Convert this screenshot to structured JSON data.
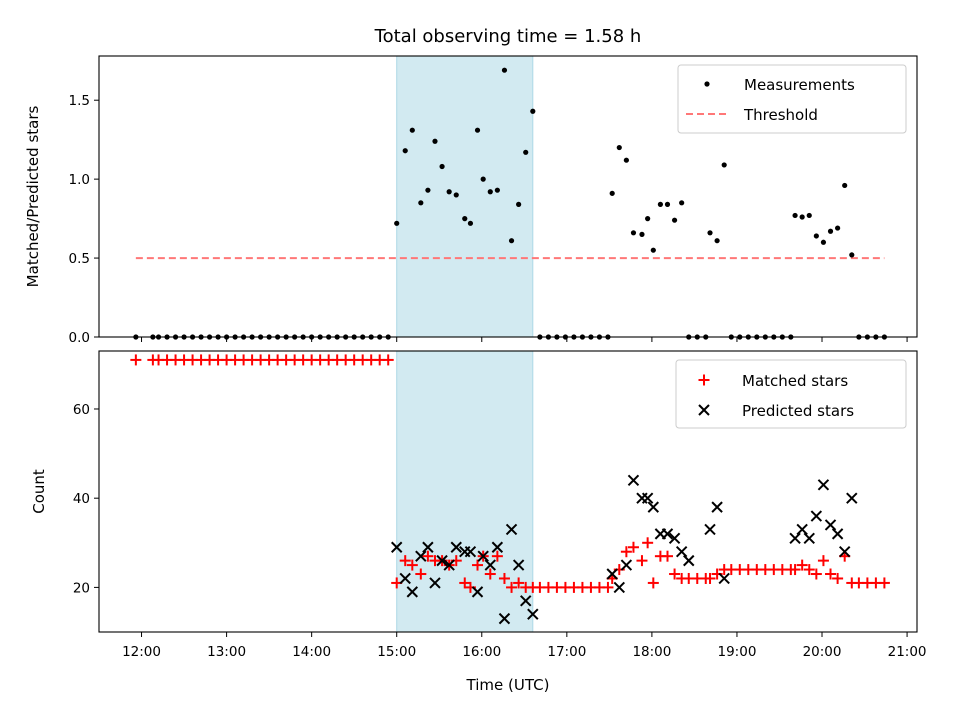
{
  "title": "Total observing time = 1.58 h",
  "highlight_window": {
    "start": "15:00",
    "end": "16:36",
    "color": "#add8e6"
  },
  "colors": {
    "measurements": "#000000",
    "threshold": "#ff7777",
    "matched": "#ff0000",
    "predicted": "#000000"
  },
  "chart_data": [
    {
      "type": "scatter",
      "ylabel": "Matched/Predicted stars",
      "ylim": [
        0,
        1.78
      ],
      "yticks": [
        "0.0",
        "0.5",
        "1.0",
        "1.5"
      ],
      "legend_position": "top-right",
      "series": [
        {
          "name": "Measurements",
          "marker": "dot",
          "points": [
            [
              "11:56",
              0
            ],
            [
              "12:08",
              0
            ],
            [
              "12:12",
              0
            ],
            [
              "12:18",
              0
            ],
            [
              "12:24",
              0
            ],
            [
              "12:30",
              0
            ],
            [
              "12:36",
              0
            ],
            [
              "12:42",
              0
            ],
            [
              "12:48",
              0
            ],
            [
              "12:54",
              0
            ],
            [
              "13:00",
              0
            ],
            [
              "13:06",
              0
            ],
            [
              "13:12",
              0
            ],
            [
              "13:18",
              0
            ],
            [
              "13:24",
              0
            ],
            [
              "13:30",
              0
            ],
            [
              "13:36",
              0
            ],
            [
              "13:42",
              0
            ],
            [
              "13:48",
              0
            ],
            [
              "13:54",
              0
            ],
            [
              "14:00",
              0
            ],
            [
              "14:06",
              0
            ],
            [
              "14:12",
              0
            ],
            [
              "14:18",
              0
            ],
            [
              "14:24",
              0
            ],
            [
              "14:30",
              0
            ],
            [
              "14:36",
              0
            ],
            [
              "14:42",
              0
            ],
            [
              "14:48",
              0
            ],
            [
              "14:54",
              0
            ],
            [
              "15:00",
              0.72
            ],
            [
              "15:06",
              1.18
            ],
            [
              "15:11",
              1.31
            ],
            [
              "15:17",
              0.85
            ],
            [
              "15:22",
              0.93
            ],
            [
              "15:27",
              1.24
            ],
            [
              "15:32",
              1.08
            ],
            [
              "15:37",
              0.92
            ],
            [
              "15:42",
              0.9
            ],
            [
              "15:48",
              0.75
            ],
            [
              "15:52",
              0.72
            ],
            [
              "15:57",
              1.31
            ],
            [
              "16:01",
              1.0
            ],
            [
              "16:06",
              0.92
            ],
            [
              "16:11",
              0.93
            ],
            [
              "16:16",
              1.69
            ],
            [
              "16:21",
              0.61
            ],
            [
              "16:26",
              0.84
            ],
            [
              "16:31",
              1.17
            ],
            [
              "16:36",
              1.43
            ],
            [
              "16:41",
              0
            ],
            [
              "16:47",
              0
            ],
            [
              "16:53",
              0
            ],
            [
              "16:59",
              0
            ],
            [
              "17:05",
              0
            ],
            [
              "17:11",
              0
            ],
            [
              "17:17",
              0
            ],
            [
              "17:23",
              0
            ],
            [
              "17:29",
              0
            ],
            [
              "17:32",
              0.91
            ],
            [
              "17:37",
              1.2
            ],
            [
              "17:42",
              1.12
            ],
            [
              "17:47",
              0.66
            ],
            [
              "17:53",
              0.65
            ],
            [
              "17:57",
              0.75
            ],
            [
              "18:01",
              0.55
            ],
            [
              "18:06",
              0.84
            ],
            [
              "18:11",
              0.84
            ],
            [
              "18:16",
              0.74
            ],
            [
              "18:21",
              0.85
            ],
            [
              "18:26",
              0
            ],
            [
              "18:32",
              0
            ],
            [
              "18:38",
              0
            ],
            [
              "18:41",
              0.66
            ],
            [
              "18:46",
              0.61
            ],
            [
              "18:51",
              1.09
            ],
            [
              "18:56",
              0
            ],
            [
              "19:02",
              0
            ],
            [
              "19:08",
              0
            ],
            [
              "19:14",
              0
            ],
            [
              "19:20",
              0
            ],
            [
              "19:26",
              0
            ],
            [
              "19:32",
              0
            ],
            [
              "19:38",
              0
            ],
            [
              "19:41",
              0.77
            ],
            [
              "19:46",
              0.76
            ],
            [
              "19:51",
              0.77
            ],
            [
              "19:56",
              0.64
            ],
            [
              "20:01",
              0.6
            ],
            [
              "20:06",
              0.67
            ],
            [
              "20:11",
              0.69
            ],
            [
              "20:16",
              0.96
            ],
            [
              "20:21",
              0.52
            ],
            [
              "20:26",
              0
            ],
            [
              "20:32",
              0
            ],
            [
              "20:38",
              0
            ],
            [
              "20:44",
              0
            ]
          ]
        },
        {
          "name": "Threshold",
          "style": "dashed-line",
          "points": [
            [
              "11:56",
              0.5
            ],
            [
              "20:44",
              0.5
            ]
          ]
        }
      ]
    },
    {
      "type": "scatter",
      "ylabel": "Count",
      "xlabel": "Time (UTC)",
      "ylim": [
        10,
        73
      ],
      "yticks": [
        "20",
        "40",
        "60"
      ],
      "xticks": [
        "12:00",
        "13:00",
        "14:00",
        "15:00",
        "16:00",
        "17:00",
        "18:00",
        "19:00",
        "20:00",
        "21:00"
      ],
      "xlim": [
        "11:30",
        "21:07"
      ],
      "legend_position": "top-right",
      "series": [
        {
          "name": "Matched stars",
          "marker": "plus",
          "points": [
            [
              "11:56",
              71
            ],
            [
              "12:08",
              71
            ],
            [
              "12:12",
              71
            ],
            [
              "12:18",
              71
            ],
            [
              "12:24",
              71
            ],
            [
              "12:30",
              71
            ],
            [
              "12:36",
              71
            ],
            [
              "12:42",
              71
            ],
            [
              "12:48",
              71
            ],
            [
              "12:54",
              71
            ],
            [
              "13:00",
              71
            ],
            [
              "13:06",
              71
            ],
            [
              "13:12",
              71
            ],
            [
              "13:18",
              71
            ],
            [
              "13:24",
              71
            ],
            [
              "13:30",
              71
            ],
            [
              "13:36",
              71
            ],
            [
              "13:42",
              71
            ],
            [
              "13:48",
              71
            ],
            [
              "13:54",
              71
            ],
            [
              "14:00",
              71
            ],
            [
              "14:06",
              71
            ],
            [
              "14:12",
              71
            ],
            [
              "14:18",
              71
            ],
            [
              "14:24",
              71
            ],
            [
              "14:30",
              71
            ],
            [
              "14:36",
              71
            ],
            [
              "14:42",
              71
            ],
            [
              "14:48",
              71
            ],
            [
              "14:54",
              71
            ],
            [
              "15:00",
              21
            ],
            [
              "15:06",
              26
            ],
            [
              "15:11",
              25
            ],
            [
              "15:17",
              23
            ],
            [
              "15:22",
              27
            ],
            [
              "15:27",
              26
            ],
            [
              "15:32",
              26
            ],
            [
              "15:37",
              25
            ],
            [
              "15:42",
              26
            ],
            [
              "15:48",
              21
            ],
            [
              "15:52",
              20
            ],
            [
              "15:57",
              25
            ],
            [
              "16:01",
              27
            ],
            [
              "16:06",
              23
            ],
            [
              "16:11",
              27
            ],
            [
              "16:16",
              22
            ],
            [
              "16:21",
              20
            ],
            [
              "16:26",
              21
            ],
            [
              "16:31",
              20
            ],
            [
              "16:36",
              20
            ],
            [
              "16:41",
              20
            ],
            [
              "16:47",
              20
            ],
            [
              "16:53",
              20
            ],
            [
              "16:59",
              20
            ],
            [
              "17:05",
              20
            ],
            [
              "17:11",
              20
            ],
            [
              "17:17",
              20
            ],
            [
              "17:23",
              20
            ],
            [
              "17:29",
              20
            ],
            [
              "17:32",
              22
            ],
            [
              "17:37",
              24
            ],
            [
              "17:42",
              28
            ],
            [
              "17:47",
              29
            ],
            [
              "17:53",
              26
            ],
            [
              "17:57",
              30
            ],
            [
              "18:01",
              21
            ],
            [
              "18:06",
              27
            ],
            [
              "18:11",
              27
            ],
            [
              "18:16",
              23
            ],
            [
              "18:21",
              22
            ],
            [
              "18:26",
              22
            ],
            [
              "18:32",
              22
            ],
            [
              "18:38",
              22
            ],
            [
              "18:41",
              22
            ],
            [
              "18:46",
              23
            ],
            [
              "18:51",
              24
            ],
            [
              "18:56",
              24
            ],
            [
              "19:02",
              24
            ],
            [
              "19:08",
              24
            ],
            [
              "19:14",
              24
            ],
            [
              "19:20",
              24
            ],
            [
              "19:26",
              24
            ],
            [
              "19:32",
              24
            ],
            [
              "19:38",
              24
            ],
            [
              "19:41",
              24
            ],
            [
              "19:46",
              25
            ],
            [
              "19:51",
              24
            ],
            [
              "19:56",
              23
            ],
            [
              "20:01",
              26
            ],
            [
              "20:06",
              23
            ],
            [
              "20:11",
              22
            ],
            [
              "20:16",
              27
            ],
            [
              "20:21",
              21
            ],
            [
              "20:26",
              21
            ],
            [
              "20:32",
              21
            ],
            [
              "20:38",
              21
            ],
            [
              "20:44",
              21
            ]
          ]
        },
        {
          "name": "Predicted stars",
          "marker": "x",
          "points": [
            [
              "15:00",
              29
            ],
            [
              "15:06",
              22
            ],
            [
              "15:11",
              19
            ],
            [
              "15:17",
              27
            ],
            [
              "15:22",
              29
            ],
            [
              "15:27",
              21
            ],
            [
              "15:32",
              26
            ],
            [
              "15:37",
              25
            ],
            [
              "15:42",
              29
            ],
            [
              "15:48",
              28
            ],
            [
              "15:52",
              28
            ],
            [
              "15:57",
              19
            ],
            [
              "16:01",
              27
            ],
            [
              "16:06",
              25
            ],
            [
              "16:11",
              29
            ],
            [
              "16:16",
              13
            ],
            [
              "16:21",
              33
            ],
            [
              "16:26",
              25
            ],
            [
              "16:31",
              17
            ],
            [
              "16:36",
              14
            ],
            [
              "17:32",
              23
            ],
            [
              "17:37",
              20
            ],
            [
              "17:42",
              25
            ],
            [
              "17:47",
              44
            ],
            [
              "17:53",
              40
            ],
            [
              "17:57",
              40
            ],
            [
              "18:01",
              38
            ],
            [
              "18:06",
              32
            ],
            [
              "18:11",
              32
            ],
            [
              "18:16",
              31
            ],
            [
              "18:21",
              28
            ],
            [
              "18:26",
              26
            ],
            [
              "18:41",
              33
            ],
            [
              "18:46",
              38
            ],
            [
              "18:51",
              22
            ],
            [
              "19:41",
              31
            ],
            [
              "19:46",
              33
            ],
            [
              "19:51",
              31
            ],
            [
              "19:56",
              36
            ],
            [
              "20:01",
              43
            ],
            [
              "20:06",
              34
            ],
            [
              "20:11",
              32
            ],
            [
              "20:16",
              28
            ],
            [
              "20:21",
              40
            ]
          ]
        }
      ]
    }
  ]
}
